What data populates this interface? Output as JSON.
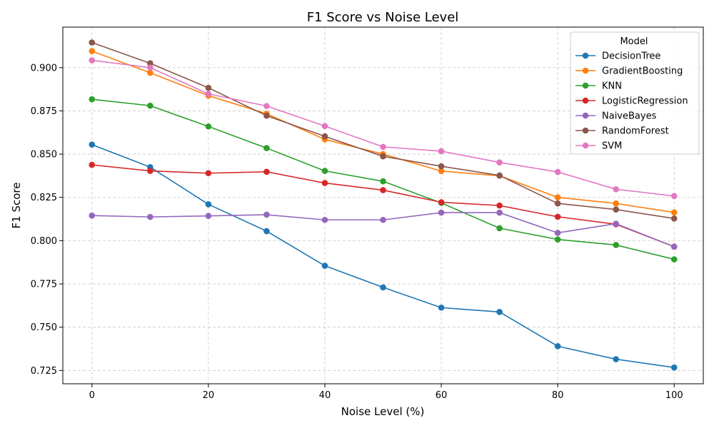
{
  "chart_data": {
    "type": "line",
    "title": "F1 Score vs Noise Level",
    "xlabel": "Noise Level (%)",
    "ylabel": "F1 Score",
    "x": [
      0,
      10,
      20,
      30,
      40,
      50,
      60,
      70,
      80,
      90,
      100
    ],
    "xlim": [
      -5,
      105
    ],
    "ylim": [
      0.7173,
      0.9234
    ],
    "x_ticks": [
      0,
      20,
      40,
      60,
      80,
      100
    ],
    "x_tick_labels": [
      "0",
      "20",
      "40",
      "60",
      "80",
      "100"
    ],
    "y_ticks": [
      0.725,
      0.75,
      0.775,
      0.8,
      0.825,
      0.85,
      0.875,
      0.9
    ],
    "y_tick_labels": [
      "0.725",
      "0.750",
      "0.775",
      "0.800",
      "0.825",
      "0.850",
      "0.875",
      "0.900"
    ],
    "grid": true,
    "legend_title": "Model",
    "legend_position": "top-right",
    "series": [
      {
        "name": "DecisionTree",
        "color": "#1f77b4",
        "values": [
          0.8555,
          0.8425,
          0.821,
          0.8055,
          0.7855,
          0.773,
          0.7613,
          0.7588,
          0.739,
          0.7315,
          0.7267
        ]
      },
      {
        "name": "GradientBoosting",
        "color": "#ff7f0e",
        "values": [
          0.9095,
          0.897,
          0.8838,
          0.8733,
          0.8585,
          0.85,
          0.8402,
          0.8375,
          0.825,
          0.8215,
          0.8163
        ]
      },
      {
        "name": "KNN",
        "color": "#2ca02c",
        "values": [
          0.8817,
          0.878,
          0.866,
          0.8535,
          0.8403,
          0.8343,
          0.8218,
          0.8072,
          0.8007,
          0.7975,
          0.7892
        ]
      },
      {
        "name": "LogisticRegression",
        "color": "#d62728",
        "values": [
          0.8438,
          0.8403,
          0.839,
          0.8398,
          0.8333,
          0.8292,
          0.8222,
          0.8203,
          0.8138,
          0.8095,
          0.7965
        ]
      },
      {
        "name": "NaiveBayes",
        "color": "#9467bd",
        "values": [
          0.8145,
          0.8137,
          0.8143,
          0.815,
          0.812,
          0.812,
          0.8162,
          0.8162,
          0.8045,
          0.8098,
          0.7965
        ]
      },
      {
        "name": "RandomForest",
        "color": "#8c564b",
        "values": [
          0.9145,
          0.9025,
          0.8883,
          0.8722,
          0.8603,
          0.8487,
          0.843,
          0.8377,
          0.8215,
          0.818,
          0.8128
        ]
      },
      {
        "name": "SVM",
        "color": "#e377c2",
        "values": [
          0.9042,
          0.9,
          0.8848,
          0.8778,
          0.8662,
          0.8542,
          0.8517,
          0.8452,
          0.8397,
          0.8297,
          0.8258
        ]
      }
    ]
  }
}
